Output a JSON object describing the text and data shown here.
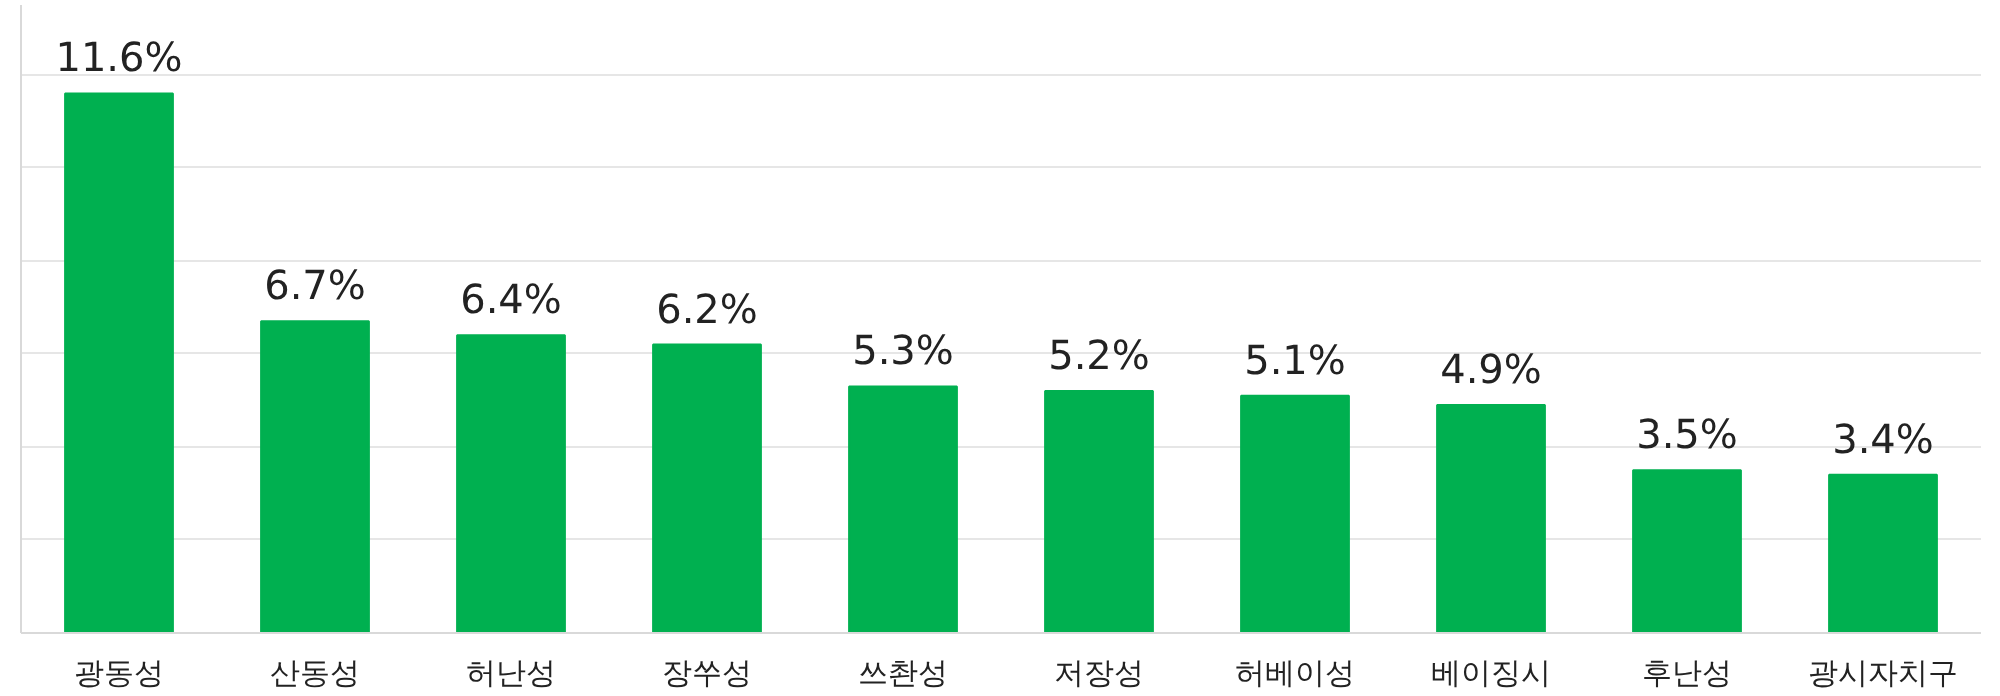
{
  "chart_data": {
    "type": "bar",
    "categories": [
      "광동성",
      "산동성",
      "허난성",
      "장쑤성",
      "쓰촨성",
      "저장성",
      "허베이성",
      "베이징시",
      "후난성",
      "광시자치구"
    ],
    "values": [
      11.6,
      6.7,
      6.4,
      6.2,
      5.3,
      5.2,
      5.1,
      4.9,
      3.5,
      3.4
    ],
    "value_labels": [
      "11.6%",
      "6.7%",
      "6.4%",
      "6.2%",
      "5.3%",
      "5.2%",
      "5.1%",
      "4.9%",
      "3.5%",
      "3.4%"
    ],
    "color": "#00b050",
    "ylim": [
      0,
      13.5
    ],
    "yticks": [
      {
        "value": 0,
        "label": null
      },
      {
        "value": 2,
        "label": null
      },
      {
        "value": 4,
        "label": null
      },
      {
        "value": 6,
        "label": null
      },
      {
        "value": 8,
        "label": null
      },
      {
        "value": 10,
        "label": null
      },
      {
        "value": 12,
        "label": null
      }
    ],
    "grid": "y",
    "tick_labels": "x"
  }
}
